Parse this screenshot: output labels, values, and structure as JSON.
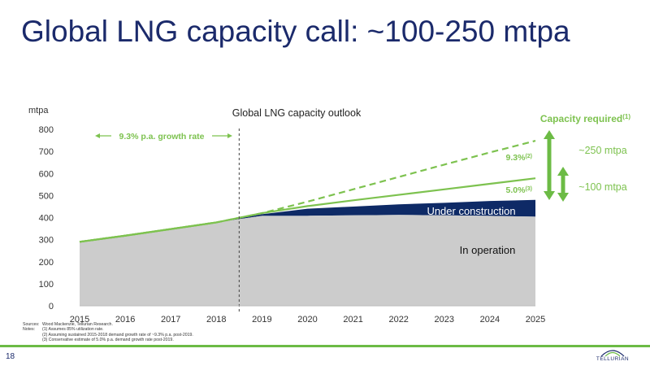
{
  "slide": {
    "title": "Global LNG capacity call: ~100-250 mtpa",
    "page_number": "18",
    "logo_text": "TELLURIAN"
  },
  "notes": {
    "sources_label": "Sources:",
    "sources_text": "Wood Mackenzie, Tellurian Research.",
    "notes_label": "Notes:",
    "items": [
      "(1) Assumes 85% utilization rate.",
      "(2) Assuming sustained 2015-2018 demand growth rate of ~9.3% p.a. post-2019.",
      "(3) Conservative estimate of 5.0% p.a. demand growth rate post-2019."
    ]
  },
  "colors": {
    "title": "#1b2a6b",
    "operation": "#cccccc",
    "construction": "#0e2a66",
    "green": "#7dc24f",
    "green_arrow": "#6cbb45"
  },
  "chart_data": {
    "type": "area",
    "title": "Global LNG capacity outlook",
    "ylabel": "mtpa",
    "ylim": [
      0,
      800
    ],
    "yticks": [
      0,
      100,
      200,
      300,
      400,
      500,
      600,
      700,
      800
    ],
    "x": [
      2015,
      2016,
      2017,
      2018,
      2019,
      2020,
      2021,
      2022,
      2023,
      2024,
      2025
    ],
    "series": [
      {
        "name": "In operation",
        "values": [
          290,
          318,
          348,
          378,
          408,
          408,
          410,
          412,
          410,
          408,
          404
        ]
      },
      {
        "name": "Under construction",
        "values": [
          290,
          318,
          348,
          378,
          415,
          440,
          450,
          460,
          467,
          475,
          480
        ]
      }
    ],
    "projections": [
      {
        "label": "9.3%",
        "note": "(2)",
        "style": "dashed",
        "x": [
          2015,
          2016,
          2017,
          2018,
          2019,
          2020,
          2021,
          2022,
          2023,
          2024,
          2025
        ],
        "values": [
          290,
          318,
          348,
          378,
          420,
          472,
          528,
          584,
          640,
          695,
          748
        ]
      },
      {
        "label": "5.0%",
        "note": "(3)",
        "style": "solid",
        "x": [
          2015,
          2016,
          2017,
          2018,
          2019,
          2020,
          2021,
          2022,
          2023,
          2024,
          2025
        ],
        "values": [
          290,
          318,
          348,
          378,
          420,
          452,
          478,
          503,
          528,
          553,
          578
        ]
      }
    ],
    "divider_x": 2018.5,
    "annotations": {
      "growth_rate": "9.3% p.a. growth rate",
      "capacity_required": "Capacity required",
      "capacity_required_note": "(1)",
      "range_high": "~250 mtpa",
      "range_low": "~100 mtpa"
    },
    "grid": false
  }
}
